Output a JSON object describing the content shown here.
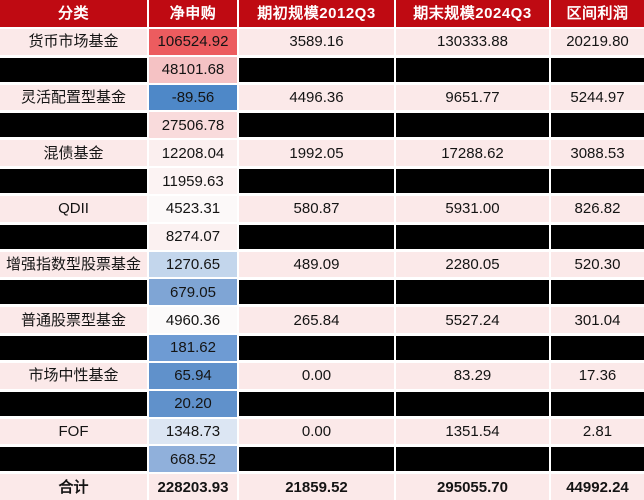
{
  "colors": {
    "header_bg": "#BF0A12",
    "header_text": "#FFFFFF",
    "row_pink": "#FBE9E9",
    "redaction": "#000000",
    "gridline": "#FFFFFF",
    "text": "#141414",
    "net_negative_blue": "#4E88C8",
    "net_high_red": "#EC5C5F"
  },
  "table": {
    "columns": [
      {
        "id": "category",
        "label": "分类"
      },
      {
        "id": "net-subscription",
        "label": "净申购"
      },
      {
        "id": "begin-scale",
        "label": "期初规模2012Q3"
      },
      {
        "id": "end-scale",
        "label": "期末规模2024Q3"
      },
      {
        "id": "profit",
        "label": "区间利润"
      }
    ],
    "rows": [
      {
        "kind": "data",
        "category": "货币市场基金",
        "net": "106524.92",
        "net_fill": "#EC5C5F",
        "begin": "3589.16",
        "end": "130333.88",
        "profit": "20219.80"
      },
      {
        "kind": "redacted",
        "category": null,
        "net": "48101.68",
        "net_fill": "#F5C2C4",
        "begin": null,
        "end": null,
        "profit": null
      },
      {
        "kind": "data",
        "category": "灵活配置型基金",
        "net": "-89.56",
        "net_fill": "#4E88C8",
        "begin": "4496.36",
        "end": "9651.77",
        "profit": "5244.97"
      },
      {
        "kind": "redacted",
        "category": null,
        "net": "27506.78",
        "net_fill": "#F9DBDC",
        "begin": null,
        "end": null,
        "profit": null
      },
      {
        "kind": "data",
        "category": "混债基金",
        "net": "12208.04",
        "net_fill": "#FBEFEF",
        "begin": "1992.05",
        "end": "17288.62",
        "profit": "3088.53"
      },
      {
        "kind": "redacted",
        "category": null,
        "net": "11959.63",
        "net_fill": "#FCF3F3",
        "begin": null,
        "end": null,
        "profit": null
      },
      {
        "kind": "data",
        "category": "QDII",
        "net": "4523.31",
        "net_fill": "#FCF9F9",
        "begin": "580.87",
        "end": "5931.00",
        "profit": "826.82"
      },
      {
        "kind": "redacted",
        "category": null,
        "net": "8274.07",
        "net_fill": "#FBF1F1",
        "begin": null,
        "end": null,
        "profit": null
      },
      {
        "kind": "data",
        "category": "增强指数型股票基金",
        "net": "1270.65",
        "net_fill": "#C3D6EC",
        "begin": "489.09",
        "end": "2280.05",
        "profit": "520.30"
      },
      {
        "kind": "redacted",
        "category": null,
        "net": "679.05",
        "net_fill": "#7FA5D5",
        "begin": null,
        "end": null,
        "profit": null
      },
      {
        "kind": "data",
        "category": "普通股票型基金",
        "net": "4960.36",
        "net_fill": "#FCFAFA",
        "begin": "265.84",
        "end": "5527.24",
        "profit": "301.04"
      },
      {
        "kind": "redacted",
        "category": null,
        "net": "181.62",
        "net_fill": "#6E9BD3",
        "begin": null,
        "end": null,
        "profit": null
      },
      {
        "kind": "data",
        "category": "市场中性基金",
        "net": "65.94",
        "net_fill": "#6091CB",
        "begin": "0.00",
        "end": "83.29",
        "profit": "17.36"
      },
      {
        "kind": "redacted",
        "category": null,
        "net": "20.20",
        "net_fill": "#6091CB",
        "begin": null,
        "end": null,
        "profit": null
      },
      {
        "kind": "data",
        "category": "FOF",
        "net": "1348.73",
        "net_fill": "#DCE6F3",
        "begin": "0.00",
        "end": "1351.54",
        "profit": "2.81"
      },
      {
        "kind": "redacted",
        "category": null,
        "net": "668.52",
        "net_fill": "#90B0DB",
        "begin": null,
        "end": null,
        "profit": null
      },
      {
        "kind": "total",
        "category": "合计",
        "net": "228203.93",
        "net_fill": "#FBE9E9",
        "begin": "21859.52",
        "end": "295055.70",
        "profit": "44992.24"
      }
    ]
  },
  "chart_data": {
    "type": "table",
    "title": "",
    "columns": [
      "分类",
      "净申购",
      "期初规模2012Q3",
      "期末规模2024Q3",
      "区间利润"
    ],
    "rows": [
      [
        "货币市场基金",
        106524.92,
        3589.16,
        130333.88,
        20219.8
      ],
      [
        "[redacted]",
        48101.68,
        "[redacted]",
        "[redacted]",
        "[redacted]"
      ],
      [
        "灵活配置型基金",
        -89.56,
        4496.36,
        9651.77,
        5244.97
      ],
      [
        "[redacted]",
        27506.78,
        "[redacted]",
        "[redacted]",
        "[redacted]"
      ],
      [
        "混债基金",
        12208.04,
        1992.05,
        17288.62,
        3088.53
      ],
      [
        "[redacted]",
        11959.63,
        "[redacted]",
        "[redacted]",
        "[redacted]"
      ],
      [
        "QDII",
        4523.31,
        580.87,
        5931.0,
        826.82
      ],
      [
        "[redacted]",
        8274.07,
        "[redacted]",
        "[redacted]",
        "[redacted]"
      ],
      [
        "增强指数型股票基金",
        1270.65,
        489.09,
        2280.05,
        520.3
      ],
      [
        "[redacted]",
        679.05,
        "[redacted]",
        "[redacted]",
        "[redacted]"
      ],
      [
        "普通股票型基金",
        4960.36,
        265.84,
        5527.24,
        301.04
      ],
      [
        "[redacted]",
        181.62,
        "[redacted]",
        "[redacted]",
        "[redacted]"
      ],
      [
        "市场中性基金",
        65.94,
        0.0,
        83.29,
        17.36
      ],
      [
        "[redacted]",
        20.2,
        "[redacted]",
        "[redacted]",
        "[redacted]"
      ],
      [
        "FOF",
        1348.73,
        0.0,
        1351.54,
        2.81
      ],
      [
        "[redacted]",
        668.52,
        "[redacted]",
        "[redacted]",
        "[redacted]"
      ],
      [
        "合计",
        228203.93,
        21859.52,
        295055.7,
        44992.24
      ]
    ],
    "layout_hints": {
      "header_style": "dark-red background, white bold text",
      "net_column_format": "3-color scale heatmap: blue (low/negative) → white (mid) → red (high)",
      "redacted_rows": "black bars cover 分类, 期初规模, 期末规模, 区间利润 cells on alternating rows",
      "total_row": "bold"
    }
  }
}
